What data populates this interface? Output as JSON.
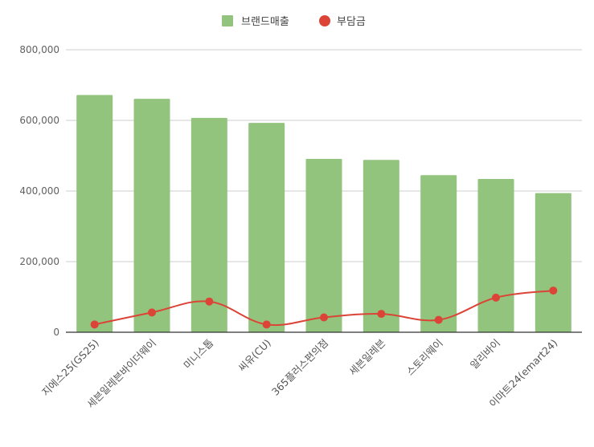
{
  "chart_data": {
    "type": "bar",
    "categories": [
      "지에스25(GS25)",
      "세븐일레븐바이더웨이",
      "미니스톱",
      "씨유(CU)",
      "365플러스편의점",
      "세븐일레븐",
      "스토리웨이",
      "알리바이",
      "이마트24(emart24)"
    ],
    "series": [
      {
        "name": "브랜드매출",
        "type": "bar",
        "color": "#93c47d",
        "values": [
          672000,
          661000,
          607000,
          593000,
          491000,
          488000,
          445000,
          434000,
          394000
        ]
      },
      {
        "name": "부담금",
        "type": "line",
        "color": "#db4437",
        "values": [
          22000,
          56000,
          87000,
          22000,
          42000,
          52000,
          35000,
          98000,
          118000
        ]
      }
    ],
    "ylim": [
      0,
      800000
    ],
    "yticks": [
      "0",
      "200,000",
      "400,000",
      "600,000",
      "800,000"
    ],
    "ytick_values": [
      0,
      200000,
      400000,
      600000,
      800000
    ],
    "grid": true,
    "legend": "top-center",
    "xlabel": "",
    "ylabel": ""
  }
}
